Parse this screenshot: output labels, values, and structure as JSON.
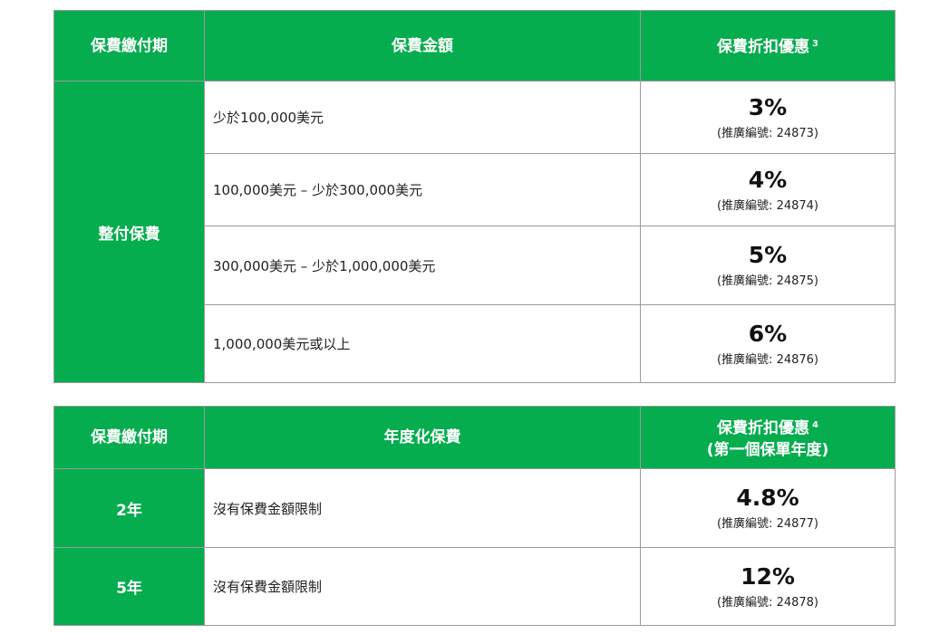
{
  "table1": {
    "headers": {
      "period": "保費繳付期",
      "amount": "保費金額",
      "discount": "保費折扣優惠",
      "discount_note": "3"
    },
    "period_label": "整付保費",
    "rows": [
      {
        "range": "少於100,000美元",
        "rate": "3%",
        "code": "(推廣編號: 24873)"
      },
      {
        "range": "100,000美元 – 少於300,000美元",
        "rate": "4%",
        "code": "(推廣編號: 24874)"
      },
      {
        "range": "300,000美元 – 少於1,000,000美元",
        "rate": "5%",
        "code": "(推廣編號: 24875)"
      },
      {
        "range": "1,000,000美元或以上",
        "rate": "6%",
        "code": "(推廣編號: 24876)"
      }
    ]
  },
  "table2": {
    "headers": {
      "period": "保費繳付期",
      "amount": "年度化保費",
      "discount": "保費折扣優惠",
      "discount_note": "4",
      "discount_sub": "(第一個保單年度)"
    },
    "rows": [
      {
        "period": "2年",
        "range": "沒有保費金額限制",
        "rate": "4.8%",
        "code": "(推廣編號: 24877)"
      },
      {
        "period": "5年",
        "range": "沒有保費金額限制",
        "rate": "12%",
        "code": "(推廣編號: 24878)"
      }
    ]
  },
  "colors": {
    "header_green": "#06ad4e",
    "border": "#9a9a9a"
  }
}
